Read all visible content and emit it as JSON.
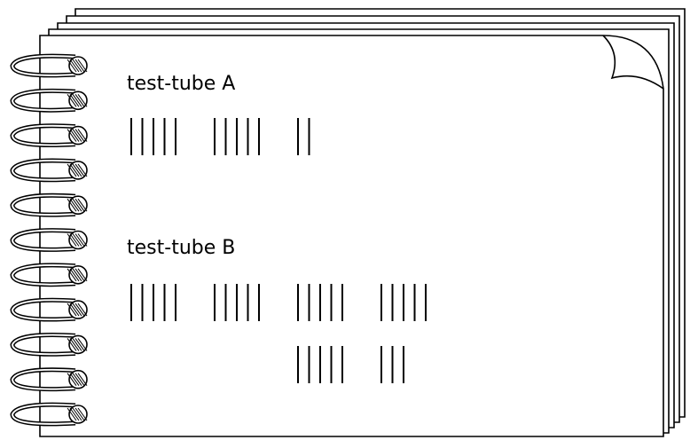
{
  "notebook": {
    "entries": [
      {
        "label": "test-tube A",
        "tallies": [
          [
            5,
            5,
            2
          ]
        ]
      },
      {
        "label": "test-tube B",
        "tallies": [
          [
            5,
            5,
            5,
            5
          ],
          [
            5,
            3
          ]
        ]
      }
    ]
  }
}
